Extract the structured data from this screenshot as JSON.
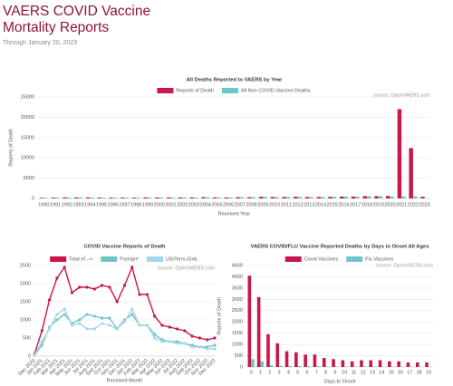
{
  "header": {
    "title": "VAERS COVID Vaccine Mortality Reports",
    "subtitle": "Through January 20, 2023"
  },
  "chart_data": [
    {
      "type": "bar",
      "title": "All Deaths Reported to VAERS by Year",
      "source": "source: OpenVAERS.com",
      "x_label": "Received Year",
      "y_label": "Reports of Death",
      "categories": [
        "1990",
        "1991",
        "1992",
        "1993",
        "1994",
        "1995",
        "1996",
        "1997",
        "1998",
        "1999",
        "2000",
        "2001",
        "2002",
        "2003",
        "2004",
        "2005",
        "2006",
        "2007",
        "2008",
        "2009",
        "2010",
        "2011",
        "2012",
        "2013",
        "2014",
        "2015",
        "2016",
        "2017",
        "2018",
        "2019",
        "2020",
        "2021",
        "2022",
        "2023"
      ],
      "series": [
        {
          "name": "Reports of Death",
          "color": "#c8174a",
          "values": [
            150,
            200,
            250,
            250,
            250,
            200,
            200,
            200,
            200,
            250,
            250,
            250,
            250,
            250,
            300,
            250,
            250,
            300,
            300,
            400,
            350,
            350,
            400,
            350,
            350,
            400,
            450,
            450,
            550,
            550,
            600,
            22000,
            12400,
            400
          ]
        },
        {
          "name": "All Non COVID-Vaccine Deaths",
          "color": "#6cc7c9",
          "values": [
            150,
            200,
            250,
            250,
            250,
            200,
            200,
            200,
            200,
            250,
            250,
            250,
            250,
            250,
            300,
            250,
            250,
            300,
            300,
            400,
            350,
            350,
            400,
            350,
            350,
            400,
            450,
            450,
            550,
            550,
            450,
            500,
            500,
            50
          ]
        }
      ],
      "ylim": [
        0,
        25000
      ],
      "yticks": [
        0,
        5000,
        10000,
        15000,
        20000,
        25000
      ],
      "grid": true
    },
    {
      "type": "line",
      "title": "COVID Vaccine Reports of Death",
      "source": "source: OpenVAERS.com",
      "x_label": "Received Month",
      "categories": [
        "Dec 2020",
        "Jan 2021",
        "Feb 2021",
        "Mar 2021",
        "Apr 2021",
        "May 2021",
        "Jun 2021",
        "Jul 2021",
        "Aug 2021",
        "Sep 2021",
        "Oct 2021",
        "Nov 2021",
        "Dec 2021",
        "Jan 2022",
        "Feb 2022",
        "Mar 2022",
        "Apr 2022",
        "May 2022",
        "Jun 2022",
        "Jul 2022",
        "Aug 2022",
        "Sep 2022",
        "Oct 2022",
        "Nov 2022",
        "Dec 2022"
      ],
      "series": [
        {
          "name": "Total of -->",
          "color": "#c8174a",
          "values": [
            50,
            700,
            1550,
            2150,
            2450,
            1750,
            1900,
            1900,
            1850,
            1950,
            1900,
            1500,
            1950,
            2450,
            1700,
            1700,
            1100,
            850,
            800,
            750,
            700,
            550,
            500,
            450,
            500
          ]
        },
        {
          "name": "Foreign*",
          "color": "#6cc7c9",
          "values": [
            20,
            300,
            800,
            1000,
            1150,
            900,
            1000,
            1150,
            1100,
            1050,
            1050,
            750,
            1000,
            1150,
            850,
            850,
            600,
            450,
            400,
            400,
            350,
            300,
            250,
            250,
            300
          ]
        },
        {
          "name": "US/Terrs./Unk.",
          "color": "#a9d5ea",
          "values": [
            30,
            400,
            750,
            1150,
            1300,
            850,
            900,
            750,
            750,
            900,
            850,
            750,
            950,
            1300,
            850,
            850,
            500,
            400,
            400,
            350,
            350,
            250,
            250,
            200,
            200
          ]
        }
      ],
      "ylim": [
        0,
        2500
      ],
      "yticks": [
        0,
        500,
        1000,
        1500,
        2000,
        2500
      ],
      "grid": true
    },
    {
      "type": "bar",
      "title": "VAERS COVID/FLU Vaccine Reported Deaths by Days to Onset All Ages",
      "source": "source: OpenVAERS.com",
      "x_label": "Days to Onset",
      "y_label": "Reports of Death",
      "categories": [
        "0",
        "1",
        "2",
        "3",
        "4",
        "5",
        "6",
        "7",
        "8",
        "9",
        "10",
        "11",
        "12",
        "13",
        "14",
        "15",
        "16",
        "17",
        "18",
        "19"
      ],
      "series": [
        {
          "name": "Covid Vaccines",
          "color": "#c8174a",
          "values": [
            4050,
            3100,
            1450,
            1050,
            700,
            650,
            550,
            550,
            400,
            350,
            300,
            250,
            300,
            300,
            300,
            250,
            250,
            200,
            200,
            200
          ]
        },
        {
          "name": "Flu Vaccines",
          "color": "#6cc7c9",
          "values": [
            350,
            250,
            80,
            60,
            40,
            40,
            30,
            30,
            20,
            20,
            20,
            15,
            15,
            15,
            10,
            10,
            10,
            10,
            10,
            10
          ]
        }
      ],
      "ylim": [
        0,
        4500
      ],
      "yticks": [
        0,
        500,
        1000,
        1500,
        2000,
        2500,
        3000,
        3500,
        4000,
        4500
      ],
      "grid": true
    }
  ]
}
